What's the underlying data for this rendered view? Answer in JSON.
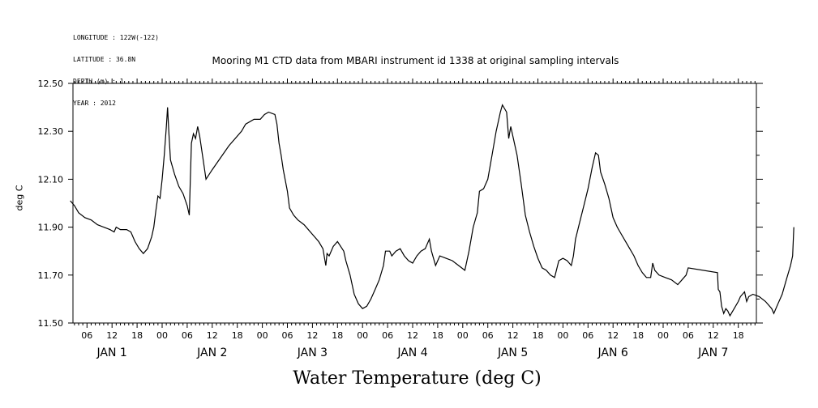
{
  "meta": {
    "longitude": "LONGITUDE : 122W(-122)",
    "latitude": "LATITUDE : 36.8N",
    "depth": "DEPTH (m) : 1",
    "year": "YEAR : 2012"
  },
  "chart_data": {
    "type": "line",
    "title": "Mooring M1 CTD data from MBARI instrument id 1338 at original sampling intervals",
    "xlabel": "Water Temperature (deg C)",
    "ylabel": "deg C",
    "xlim_hours": [
      2,
      162
    ],
    "ylim": [
      11.5,
      12.5
    ],
    "grid": false,
    "y_ticks": [
      11.5,
      11.7,
      11.9,
      12.1,
      12.3,
      12.5
    ],
    "y_tick_labels": [
      "11.50",
      "11.70",
      "11.90",
      "12.10",
      "12.30",
      "12.50"
    ],
    "hour_tick_labels": [
      "06",
      "12",
      "18",
      "00",
      "06",
      "12",
      "18",
      "00",
      "06",
      "12",
      "18",
      "00",
      "06",
      "12",
      "18",
      "00",
      "06",
      "12",
      "18",
      "00",
      "06",
      "12",
      "18",
      "00",
      "06",
      "12",
      "18",
      "00",
      "06",
      "12",
      "18"
    ],
    "day_labels": [
      "JAN  1",
      "JAN  2",
      "JAN  3",
      "JAN  4",
      "JAN  5",
      "JAN  6",
      "JAN  7"
    ],
    "series": [
      {
        "values": [
          [
            2.0,
            12.01
          ],
          [
            3.0,
            11.99
          ],
          [
            4.0,
            11.96
          ],
          [
            5.5,
            11.94
          ],
          [
            7.0,
            11.93
          ],
          [
            8.5,
            11.91
          ],
          [
            10.0,
            11.9
          ],
          [
            11.5,
            11.89
          ],
          [
            12.5,
            11.88
          ],
          [
            13.0,
            11.9
          ],
          [
            14.0,
            11.89
          ],
          [
            15.5,
            11.89
          ],
          [
            16.5,
            11.88
          ],
          [
            17.5,
            11.84
          ],
          [
            18.5,
            11.81
          ],
          [
            19.5,
            11.79
          ],
          [
            20.5,
            11.81
          ],
          [
            21.5,
            11.86
          ],
          [
            22.0,
            11.9
          ],
          [
            22.5,
            11.97
          ],
          [
            23.0,
            12.03
          ],
          [
            23.5,
            12.02
          ],
          [
            24.0,
            12.1
          ],
          [
            24.5,
            12.2
          ],
          [
            25.0,
            12.32
          ],
          [
            25.3,
            12.4
          ],
          [
            25.6,
            12.3
          ],
          [
            26.0,
            12.18
          ],
          [
            27.0,
            12.12
          ],
          [
            28.0,
            12.07
          ],
          [
            29.0,
            12.04
          ],
          [
            30.0,
            11.99
          ],
          [
            30.5,
            11.95
          ],
          [
            31.0,
            12.25
          ],
          [
            31.5,
            12.29
          ],
          [
            32.0,
            12.27
          ],
          [
            32.5,
            12.32
          ],
          [
            33.0,
            12.28
          ],
          [
            34.0,
            12.16
          ],
          [
            34.5,
            12.1
          ],
          [
            36.0,
            12.14
          ],
          [
            40.0,
            12.24
          ],
          [
            43.0,
            12.3
          ],
          [
            44.0,
            12.33
          ],
          [
            46.0,
            12.35
          ],
          [
            47.5,
            12.35
          ],
          [
            48.5,
            12.37
          ],
          [
            49.5,
            12.38
          ],
          [
            51.0,
            12.37
          ],
          [
            51.5,
            12.33
          ],
          [
            52.0,
            12.25
          ],
          [
            52.5,
            12.2
          ],
          [
            53.0,
            12.14
          ],
          [
            54.0,
            12.05
          ],
          [
            54.5,
            11.98
          ],
          [
            55.5,
            11.95
          ],
          [
            56.5,
            11.93
          ],
          [
            58.0,
            11.91
          ],
          [
            60.0,
            11.87
          ],
          [
            61.5,
            11.84
          ],
          [
            62.5,
            11.81
          ],
          [
            63.2,
            11.74
          ],
          [
            63.5,
            11.79
          ],
          [
            64.0,
            11.78
          ],
          [
            65.0,
            11.82
          ],
          [
            66.0,
            11.84
          ],
          [
            67.5,
            11.8
          ],
          [
            68.0,
            11.76
          ],
          [
            69.0,
            11.7
          ],
          [
            70.0,
            11.62
          ],
          [
            71.0,
            11.58
          ],
          [
            72.0,
            11.56
          ],
          [
            73.0,
            11.57
          ],
          [
            74.0,
            11.6
          ],
          [
            75.0,
            11.64
          ],
          [
            76.0,
            11.68
          ],
          [
            77.0,
            11.74
          ],
          [
            77.5,
            11.8
          ],
          [
            78.5,
            11.8
          ],
          [
            79.0,
            11.78
          ],
          [
            80.0,
            11.8
          ],
          [
            81.0,
            11.81
          ],
          [
            82.0,
            11.78
          ],
          [
            83.0,
            11.76
          ],
          [
            84.0,
            11.75
          ],
          [
            85.0,
            11.78
          ],
          [
            86.0,
            11.8
          ],
          [
            87.0,
            11.81
          ],
          [
            88.0,
            11.85
          ],
          [
            88.5,
            11.8
          ],
          [
            89.5,
            11.74
          ],
          [
            90.5,
            11.78
          ],
          [
            92.0,
            11.77
          ],
          [
            93.5,
            11.76
          ],
          [
            95.0,
            11.74
          ],
          [
            96.5,
            11.72
          ],
          [
            97.5,
            11.8
          ],
          [
            98.5,
            11.9
          ],
          [
            99.5,
            11.96
          ],
          [
            100.0,
            12.05
          ],
          [
            101.0,
            12.06
          ],
          [
            102.0,
            12.1
          ],
          [
            103.0,
            12.2
          ],
          [
            104.0,
            12.3
          ],
          [
            105.0,
            12.38
          ],
          [
            105.5,
            12.41
          ],
          [
            106.5,
            12.38
          ],
          [
            107.0,
            12.27
          ],
          [
            107.5,
            12.32
          ],
          [
            108.0,
            12.28
          ],
          [
            109.0,
            12.2
          ],
          [
            110.0,
            12.08
          ],
          [
            111.0,
            11.95
          ],
          [
            112.0,
            11.88
          ],
          [
            113.0,
            11.82
          ],
          [
            114.0,
            11.77
          ],
          [
            115.0,
            11.73
          ],
          [
            116.0,
            11.72
          ],
          [
            117.0,
            11.7
          ],
          [
            118.0,
            11.69
          ],
          [
            119.0,
            11.76
          ],
          [
            120.0,
            11.77
          ],
          [
            121.0,
            11.76
          ],
          [
            122.0,
            11.74
          ],
          [
            122.5,
            11.78
          ],
          [
            123.0,
            11.85
          ],
          [
            124.0,
            11.92
          ],
          [
            125.0,
            11.99
          ],
          [
            126.0,
            12.06
          ],
          [
            127.0,
            12.15
          ],
          [
            127.8,
            12.21
          ],
          [
            128.5,
            12.2
          ],
          [
            129.0,
            12.13
          ],
          [
            130.0,
            12.08
          ],
          [
            131.0,
            12.02
          ],
          [
            132.0,
            11.94
          ],
          [
            133.0,
            11.9
          ],
          [
            134.0,
            11.87
          ],
          [
            135.0,
            11.84
          ],
          [
            136.0,
            11.81
          ],
          [
            137.0,
            11.78
          ],
          [
            138.0,
            11.74
          ],
          [
            139.0,
            11.71
          ],
          [
            140.0,
            11.69
          ],
          [
            141.0,
            11.69
          ],
          [
            141.5,
            11.75
          ],
          [
            142.0,
            11.72
          ],
          [
            143.0,
            11.7
          ],
          [
            144.5,
            11.69
          ],
          [
            146.0,
            11.68
          ],
          [
            147.5,
            11.66
          ],
          [
            148.5,
            11.68
          ],
          [
            149.5,
            11.7
          ],
          [
            150.0,
            11.73
          ],
          [
            157.0,
            11.71
          ],
          [
            157.2,
            11.64
          ],
          [
            157.6,
            11.63
          ],
          [
            158.0,
            11.57
          ],
          [
            158.5,
            11.54
          ],
          [
            159.0,
            11.56
          ],
          [
            159.5,
            11.55
          ],
          [
            160.0,
            11.53
          ],
          [
            161.0,
            11.56
          ],
          [
            162.0,
            11.59
          ],
          [
            162.5,
            11.61
          ],
          [
            163.5,
            11.63
          ],
          [
            164.0,
            11.59
          ],
          [
            164.5,
            11.61
          ],
          [
            165.5,
            11.62
          ],
          [
            167.0,
            11.61
          ],
          [
            168.5,
            11.59
          ],
          [
            170.0,
            11.56
          ],
          [
            170.5,
            11.54
          ],
          [
            171.5,
            11.58
          ],
          [
            172.5,
            11.62
          ],
          [
            173.5,
            11.68
          ],
          [
            174.5,
            11.74
          ],
          [
            175.0,
            11.78
          ],
          [
            175.3,
            11.9
          ]
        ]
      }
    ]
  }
}
